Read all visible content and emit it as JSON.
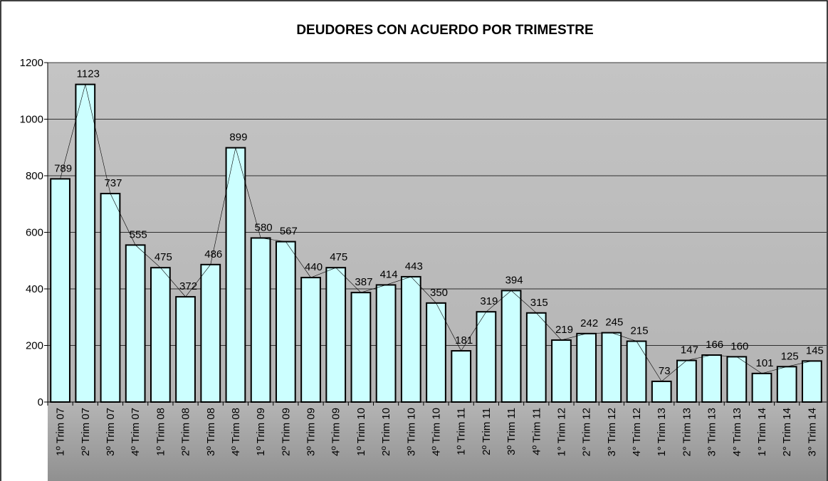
{
  "chart_data": {
    "type": "bar",
    "title": "DEUDORES CON ACUERDO POR TRIMESTRE",
    "categories": [
      "1º Trim 07",
      "2º Trim 07",
      "3º Trim 07",
      "4º Trim 07",
      "1º Trim 08",
      "2º Trim 08",
      "3º Trim 08",
      "4º Trim 08",
      "1º Trim 09",
      "2º Trim 09",
      "3º Trim 09",
      "4º Trim 09",
      "1º Trim 10",
      "2º Trim 10",
      "3º Trim 10",
      "4º Trim 10",
      "1º Trim 11",
      "2º Trim 11",
      "3º Trim 11",
      "4º Trim 11",
      "1° Trim 12",
      "2° Trim 12",
      "3° Trim 12",
      "4° Trim 12",
      "1° Trim 13",
      "2° Trim 13",
      "3° Trim 13",
      "4° Trim 13",
      "1° Trim 14",
      "2° Trim 14",
      "3° Trim 14"
    ],
    "values": [
      789,
      1123,
      737,
      555,
      475,
      372,
      486,
      899,
      580,
      567,
      440,
      475,
      387,
      414,
      443,
      350,
      181,
      319,
      394,
      315,
      219,
      242,
      245,
      215,
      73,
      147,
      166,
      160,
      101,
      125,
      145
    ],
    "color": "#ccffff",
    "ylim": [
      0,
      1200
    ],
    "yticks": [
      0,
      200,
      400,
      600,
      800,
      1000,
      1200
    ],
    "grid": true
  }
}
